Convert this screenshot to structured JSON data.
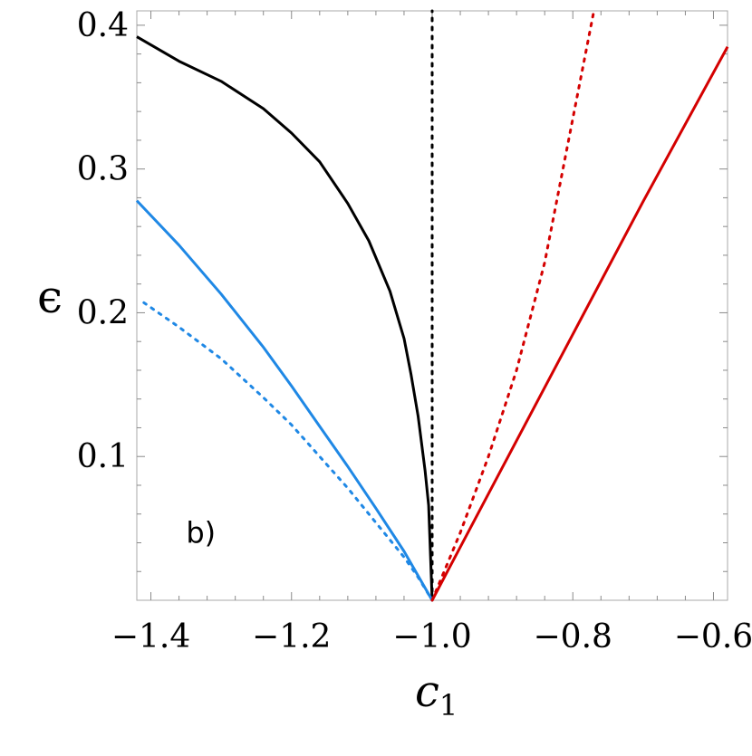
{
  "chart_data": {
    "type": "line",
    "title": "",
    "xlabel": "c",
    "xlabel_subscript": "1",
    "ylabel": "ϵ",
    "xlim": [
      -1.42,
      -0.58
    ],
    "ylim": [
      0.0,
      0.41
    ],
    "x_ticks": [
      -1.4,
      -1.2,
      -1.0,
      -0.8,
      -0.6
    ],
    "x_tick_labels": [
      "−1.4",
      "−1.2",
      "−1.0",
      "−0.8",
      "−0.6"
    ],
    "y_ticks": [
      0.1,
      0.2,
      0.3,
      0.4
    ],
    "y_tick_labels": [
      "0.1",
      "0.2",
      "0.3",
      "0.4"
    ],
    "grid": false,
    "annotations": [
      {
        "text": "b)",
        "x": -1.35,
        "y": 0.04
      }
    ],
    "series": [
      {
        "color": "#000000",
        "style": "solid",
        "x": [
          -1.42,
          -1.36,
          -1.3,
          -1.24,
          -1.2,
          -1.16,
          -1.12,
          -1.09,
          -1.06,
          -1.04,
          -1.03,
          -1.02,
          -1.01,
          -1.005,
          -1.0
        ],
        "y": [
          0.392,
          0.375,
          0.361,
          0.342,
          0.325,
          0.305,
          0.276,
          0.25,
          0.215,
          0.182,
          0.157,
          0.128,
          0.09,
          0.066,
          0.0
        ]
      },
      {
        "color": "#000000",
        "style": "dotted",
        "x": [
          -1.0,
          -1.0
        ],
        "y": [
          0.0,
          0.41
        ]
      },
      {
        "color": "#1f88e5",
        "style": "solid",
        "x": [
          -1.42,
          -1.36,
          -1.3,
          -1.24,
          -1.2,
          -1.16,
          -1.12,
          -1.08,
          -1.04,
          -1.02,
          -1.0
        ],
        "y": [
          0.278,
          0.247,
          0.213,
          0.176,
          0.149,
          0.121,
          0.093,
          0.064,
          0.034,
          0.017,
          0.0
        ]
      },
      {
        "color": "#1f88e5",
        "style": "dotted",
        "x": [
          -1.41,
          -1.36,
          -1.3,
          -1.24,
          -1.2,
          -1.16,
          -1.12,
          -1.08,
          -1.04,
          -1.02,
          -1.0
        ],
        "y": [
          0.207,
          0.19,
          0.168,
          0.141,
          0.122,
          0.1,
          0.078,
          0.054,
          0.03,
          0.016,
          0.0
        ]
      },
      {
        "color": "#d40000",
        "style": "solid",
        "x": [
          -1.0,
          -0.9,
          -0.8,
          -0.7,
          -0.58
        ],
        "y": [
          0.0,
          0.0925,
          0.185,
          0.2775,
          0.385
        ]
      },
      {
        "color": "#d40000",
        "style": "dotted",
        "x": [
          -1.0,
          -0.96,
          -0.92,
          -0.88,
          -0.84,
          -0.8,
          -0.77
        ],
        "y": [
          0.0,
          0.047,
          0.1,
          0.16,
          0.235,
          0.335,
          0.41
        ]
      }
    ]
  }
}
